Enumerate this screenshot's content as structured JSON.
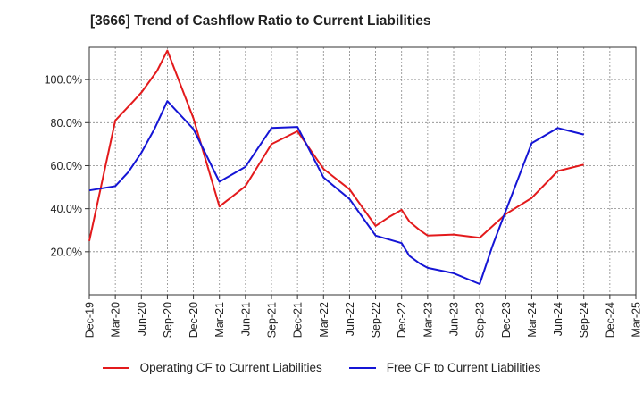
{
  "chart_data": {
    "type": "line",
    "title": "[3666]  Trend of Cashflow Ratio to Current Liabilities",
    "xlabel": "",
    "ylabel": "",
    "x_tick_labels": [
      "Dec-19",
      "Mar-20",
      "Jun-20",
      "Sep-20",
      "Dec-20",
      "Mar-21",
      "Jun-21",
      "Sep-21",
      "Dec-21",
      "Mar-22",
      "Jun-22",
      "Sep-22",
      "Dec-22",
      "Mar-23",
      "Jun-23",
      "Sep-23",
      "Dec-23",
      "Mar-24",
      "Jun-24",
      "Sep-24",
      "Dec-24",
      "Mar-25"
    ],
    "y_ticks": [
      20,
      40,
      60,
      80,
      100
    ],
    "y_tick_labels": [
      "20.0%",
      "40.0%",
      "60.0%",
      "80.0%",
      "100.0%"
    ],
    "xlim_quarters": [
      0,
      21
    ],
    "ylim": [
      0,
      115
    ],
    "grid": true,
    "legend_position": "bottom",
    "series": [
      {
        "name": "Operating CF to Current Liabilities",
        "color": "#e31a1c",
        "x": [
          0,
          1,
          1.7,
          2,
          2.6,
          3,
          4,
          5,
          6,
          7,
          8,
          9,
          10,
          11,
          11.5,
          12,
          12.3,
          12.7,
          13,
          14,
          15,
          16,
          17,
          18,
          19
        ],
        "y": [
          25,
          81,
          90,
          94,
          104,
          113.5,
          82,
          41,
          50.5,
          70,
          76,
          58.5,
          49,
          32,
          36,
          39.5,
          34,
          30,
          27.5,
          28,
          26.5,
          37.5,
          45,
          57.5,
          60.5
        ]
      },
      {
        "name": "Free CF to Current Liabilities",
        "color": "#1515d5",
        "x": [
          0,
          1,
          1.5,
          2,
          2.5,
          3,
          4,
          5,
          6,
          7,
          8,
          9,
          10,
          11,
          12,
          12.3,
          12.7,
          13,
          14,
          15,
          15.5,
          16,
          17,
          18,
          19
        ],
        "y": [
          48.5,
          50.5,
          57,
          66,
          77,
          90,
          77,
          52.5,
          59.5,
          77.5,
          78,
          54.5,
          44.5,
          27.5,
          24,
          18,
          14.5,
          12.5,
          10,
          5,
          23,
          39,
          70.5,
          77.5,
          74.5
        ]
      }
    ]
  }
}
